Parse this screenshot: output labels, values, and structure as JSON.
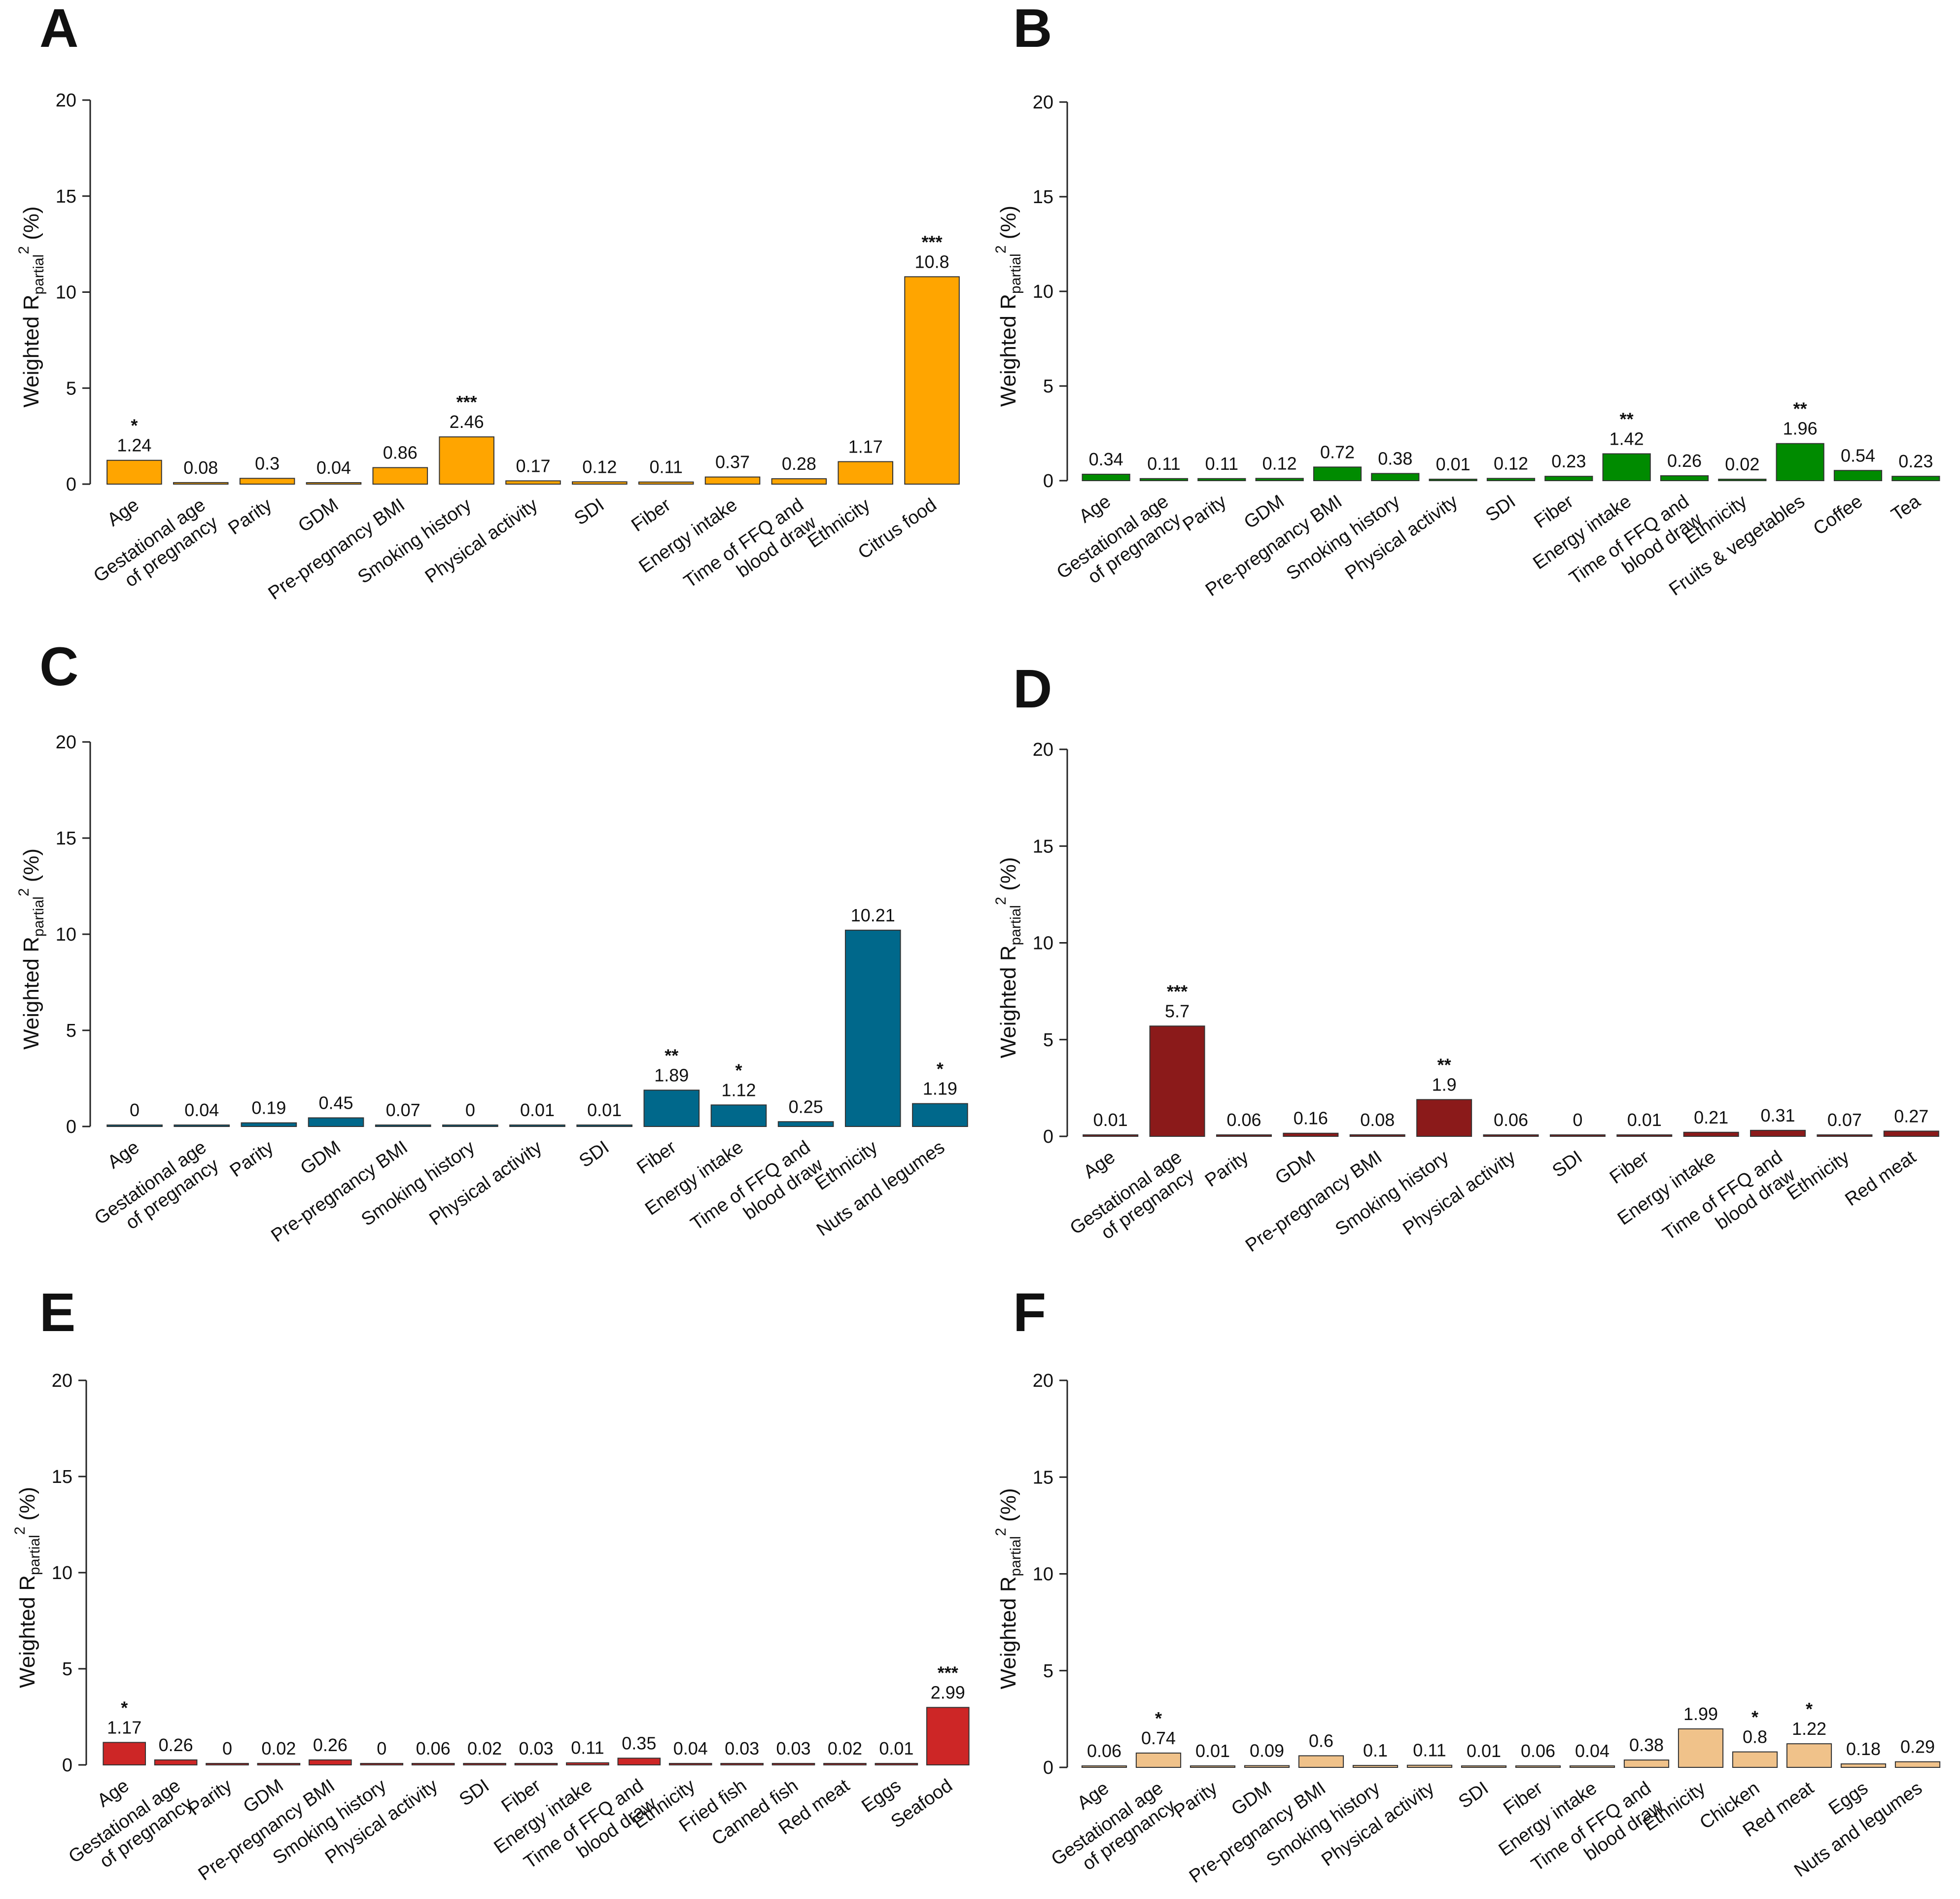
{
  "chart_data": [
    {
      "panel": "A",
      "type": "bar",
      "color": "#FFA500",
      "ylabel": "Weighted Rpartial2 (%)",
      "ylim": [
        0,
        20
      ],
      "yticks": [
        0,
        5,
        10,
        15,
        20
      ],
      "categories": [
        "Age",
        "Gestational age\nof pregnancy",
        "Parity",
        "GDM",
        "Pre-pregnancy BMI",
        "Smoking history",
        "Physical activity",
        "SDI",
        "Fiber",
        "Energy intake",
        "Time of FFQ and\nblood draw",
        "Ethnicity",
        "Citrus food"
      ],
      "values": [
        1.24,
        0.08,
        0.3,
        0.04,
        0.86,
        2.46,
        0.17,
        0.12,
        0.11,
        0.37,
        0.28,
        1.17,
        10.8
      ],
      "value_labels": [
        "1.24",
        "0.08",
        "0.3",
        "0.04",
        "0.86",
        "2.46",
        "0.17",
        "0.12",
        "0.11",
        "0.37",
        "0.28",
        "1.17",
        "10.8"
      ],
      "significance": [
        "*",
        "",
        "",
        "",
        "",
        "***",
        "",
        "",
        "",
        "",
        "",
        "",
        "***"
      ]
    },
    {
      "panel": "B",
      "type": "bar",
      "color": "#008B00",
      "ylabel": "Weighted Rpartial2 (%)",
      "ylim": [
        0,
        20
      ],
      "yticks": [
        0,
        5,
        10,
        15,
        20
      ],
      "categories": [
        "Age",
        "Gestational age\nof pregnancy",
        "Parity",
        "GDM",
        "Pre-pregnancy BMI",
        "Smoking history",
        "Physical activity",
        "SDI",
        "Fiber",
        "Energy intake",
        "Time of FFQ and\nblood draw",
        "Ethnicity",
        "Fruits & vegetables",
        "Coffee",
        "Tea"
      ],
      "values": [
        0.34,
        0.11,
        0.11,
        0.12,
        0.72,
        0.38,
        0.01,
        0.12,
        0.23,
        1.42,
        0.26,
        0.02,
        1.96,
        0.54,
        0.23
      ],
      "value_labels": [
        "0.34",
        "0.11",
        "0.11",
        "0.12",
        "0.72",
        "0.38",
        "0.01",
        "0.12",
        "0.23",
        "1.42",
        "0.26",
        "0.02",
        "1.96",
        "0.54",
        "0.23"
      ],
      "significance": [
        "",
        "",
        "",
        "",
        "",
        "",
        "",
        "",
        "",
        "**",
        "",
        "",
        "**",
        "",
        ""
      ]
    },
    {
      "panel": "C",
      "type": "bar",
      "color": "#00688B",
      "ylabel": "Weighted Rpartial2 (%)",
      "ylim": [
        0,
        20
      ],
      "yticks": [
        0,
        5,
        10,
        15,
        20
      ],
      "categories": [
        "Age",
        "Gestational age\nof pregnancy",
        "Parity",
        "GDM",
        "Pre-pregnancy BMI",
        "Smoking history",
        "Physical activity",
        "SDI",
        "Fiber",
        "Energy intake",
        "Time of FFQ and\nblood draw",
        "Ethnicity",
        "Nuts and legumes"
      ],
      "values": [
        0,
        0.04,
        0.19,
        0.45,
        0.07,
        0,
        0.01,
        0.01,
        1.89,
        1.12,
        0.25,
        10.21,
        1.19
      ],
      "value_labels": [
        "0",
        "0.04",
        "0.19",
        "0.45",
        "0.07",
        "0",
        "0.01",
        "0.01",
        "1.89",
        "1.12",
        "0.25",
        "10.21",
        "1.19"
      ],
      "significance": [
        "",
        "",
        "",
        "",
        "",
        "",
        "",
        "",
        "**",
        "*",
        "",
        "",
        "*"
      ]
    },
    {
      "panel": "D",
      "type": "bar",
      "color": "#8B1A1A",
      "ylabel": "Weighted Rpartial2 (%)",
      "ylim": [
        0,
        20
      ],
      "yticks": [
        0,
        5,
        10,
        15,
        20
      ],
      "categories": [
        "Age",
        "Gestational age\nof pregnancy",
        "Parity",
        "GDM",
        "Pre-pregnancy BMI",
        "Smoking history",
        "Physical activity",
        "SDI",
        "Fiber",
        "Energy intake",
        "Time of FFQ and\nblood draw",
        "Ethnicity",
        "Red meat"
      ],
      "values": [
        0.01,
        5.7,
        0.06,
        0.16,
        0.08,
        1.9,
        0.06,
        0,
        0.01,
        0.21,
        0.31,
        0.07,
        0.27
      ],
      "value_labels": [
        "0.01",
        "5.7",
        "0.06",
        "0.16",
        "0.08",
        "1.9",
        "0.06",
        "0",
        "0.01",
        "0.21",
        "0.31",
        "0.07",
        "0.27"
      ],
      "significance": [
        "",
        "***",
        "",
        "",
        "",
        "**",
        "",
        "",
        "",
        "",
        "",
        "",
        ""
      ]
    },
    {
      "panel": "E",
      "type": "bar",
      "color": "#CD2626",
      "ylabel": "Weighted Rpartial2 (%)",
      "ylim": [
        0,
        20
      ],
      "yticks": [
        0,
        5,
        10,
        15,
        20
      ],
      "categories": [
        "Age",
        "Gestational age\nof pregnancy",
        "Parity",
        "GDM",
        "Pre-pregnancy BMI",
        "Smoking history",
        "Physical activity",
        "SDI",
        "Fiber",
        "Energy intake",
        "Time of FFQ and\nblood draw",
        "Ethnicity",
        "Fried fish",
        "Canned fish",
        "Red meat",
        "Eggs",
        "Seafood"
      ],
      "values": [
        1.17,
        0.26,
        0,
        0.02,
        0.26,
        0,
        0.06,
        0.02,
        0.03,
        0.11,
        0.35,
        0.04,
        0.03,
        0.03,
        0.02,
        0.01,
        2.99
      ],
      "value_labels": [
        "1.17",
        "0.26",
        "0",
        "0.02",
        "0.26",
        "0",
        "0.06",
        "0.02",
        "0.03",
        "0.11",
        "0.35",
        "0.04",
        "0.03",
        "0.03",
        "0.02",
        "0.01",
        "2.99"
      ],
      "significance": [
        "*",
        "",
        "",
        "",
        "",
        "",
        "",
        "",
        "",
        "",
        "",
        "",
        "",
        "",
        "",
        "",
        "***"
      ]
    },
    {
      "panel": "F",
      "type": "bar",
      "color": "#F0C28A",
      "ylabel": "Weighted Rpartial2 (%)",
      "ylim": [
        0,
        20
      ],
      "yticks": [
        0,
        5,
        10,
        15,
        20
      ],
      "categories": [
        "Age",
        "Gestational age\nof pregnancy",
        "Parity",
        "GDM",
        "Pre-pregnancy BMI",
        "Smoking history",
        "Physical activity",
        "SDI",
        "Fiber",
        "Energy intake",
        "Time of FFQ and\nblood draw",
        "Ethnicity",
        "Chicken",
        "Red meat",
        "Eggs",
        "Nuts and legumes"
      ],
      "values": [
        0.06,
        0.74,
        0.01,
        0.09,
        0.6,
        0.1,
        0.11,
        0.01,
        0.06,
        0.04,
        0.38,
        1.99,
        0.8,
        1.22,
        0.18,
        0.29
      ],
      "value_labels": [
        "0.06",
        "0.74",
        "0.01",
        "0.09",
        "0.6",
        "0.1",
        "0.11",
        "0.01",
        "0.06",
        "0.04",
        "0.38",
        "1.99",
        "0.8",
        "1.22",
        "0.18",
        "0.29"
      ],
      "significance": [
        "",
        "*",
        "",
        "",
        "",
        "",
        "",
        "",
        "",
        "",
        "",
        "",
        "*",
        "*",
        "",
        ""
      ]
    }
  ]
}
